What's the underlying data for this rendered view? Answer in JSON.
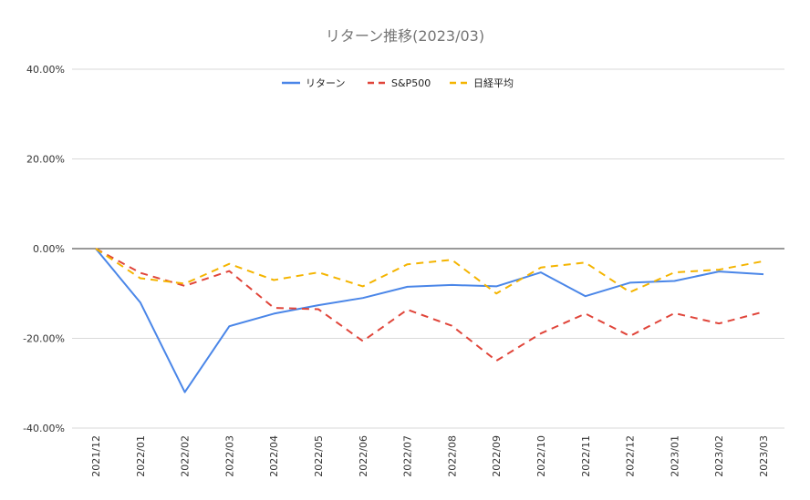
{
  "chart_data": {
    "type": "line",
    "title": "リターン推移(2023/03)",
    "xlabel": "",
    "ylabel": "",
    "categories": [
      "2021/12",
      "2022/01",
      "2022/02",
      "2022/03",
      "2022/04",
      "2022/05",
      "2022/06",
      "2022/07",
      "2022/08",
      "2022/09",
      "2022/10",
      "2022/11",
      "2022/12",
      "2023/01",
      "2023/02",
      "2023/03"
    ],
    "ylim": [
      -40,
      40
    ],
    "yticks": [
      40,
      20,
      0,
      -20,
      -40
    ],
    "ytick_labels": [
      "40.00%",
      "20.00%",
      "0.00%",
      "-20.00%",
      "-40.00%"
    ],
    "grid": true,
    "legend_position": "top",
    "series": [
      {
        "name": "リターン",
        "color": "#4a86e8",
        "dash": "solid",
        "values": [
          0.0,
          -12.0,
          -32.0,
          -17.3,
          -14.5,
          -12.6,
          -11.0,
          -8.5,
          -8.1,
          -8.4,
          -5.3,
          -10.6,
          -7.6,
          -7.2,
          -5.1,
          -5.7
        ]
      },
      {
        "name": "S&P500",
        "color": "#e0453a",
        "dash": "dashed",
        "values": [
          0.0,
          -5.4,
          -8.3,
          -5.0,
          -13.2,
          -13.5,
          -20.6,
          -13.6,
          -17.2,
          -25.0,
          -18.9,
          -14.5,
          -19.5,
          -14.4,
          -16.7,
          -14.1
        ]
      },
      {
        "name": "日経平均",
        "color": "#f4b400",
        "dash": "dashed",
        "values": [
          0.0,
          -6.6,
          -7.8,
          -3.4,
          -7.0,
          -5.3,
          -8.4,
          -3.5,
          -2.5,
          -10.0,
          -4.2,
          -3.1,
          -9.7,
          -5.3,
          -4.7,
          -2.8
        ]
      }
    ]
  }
}
